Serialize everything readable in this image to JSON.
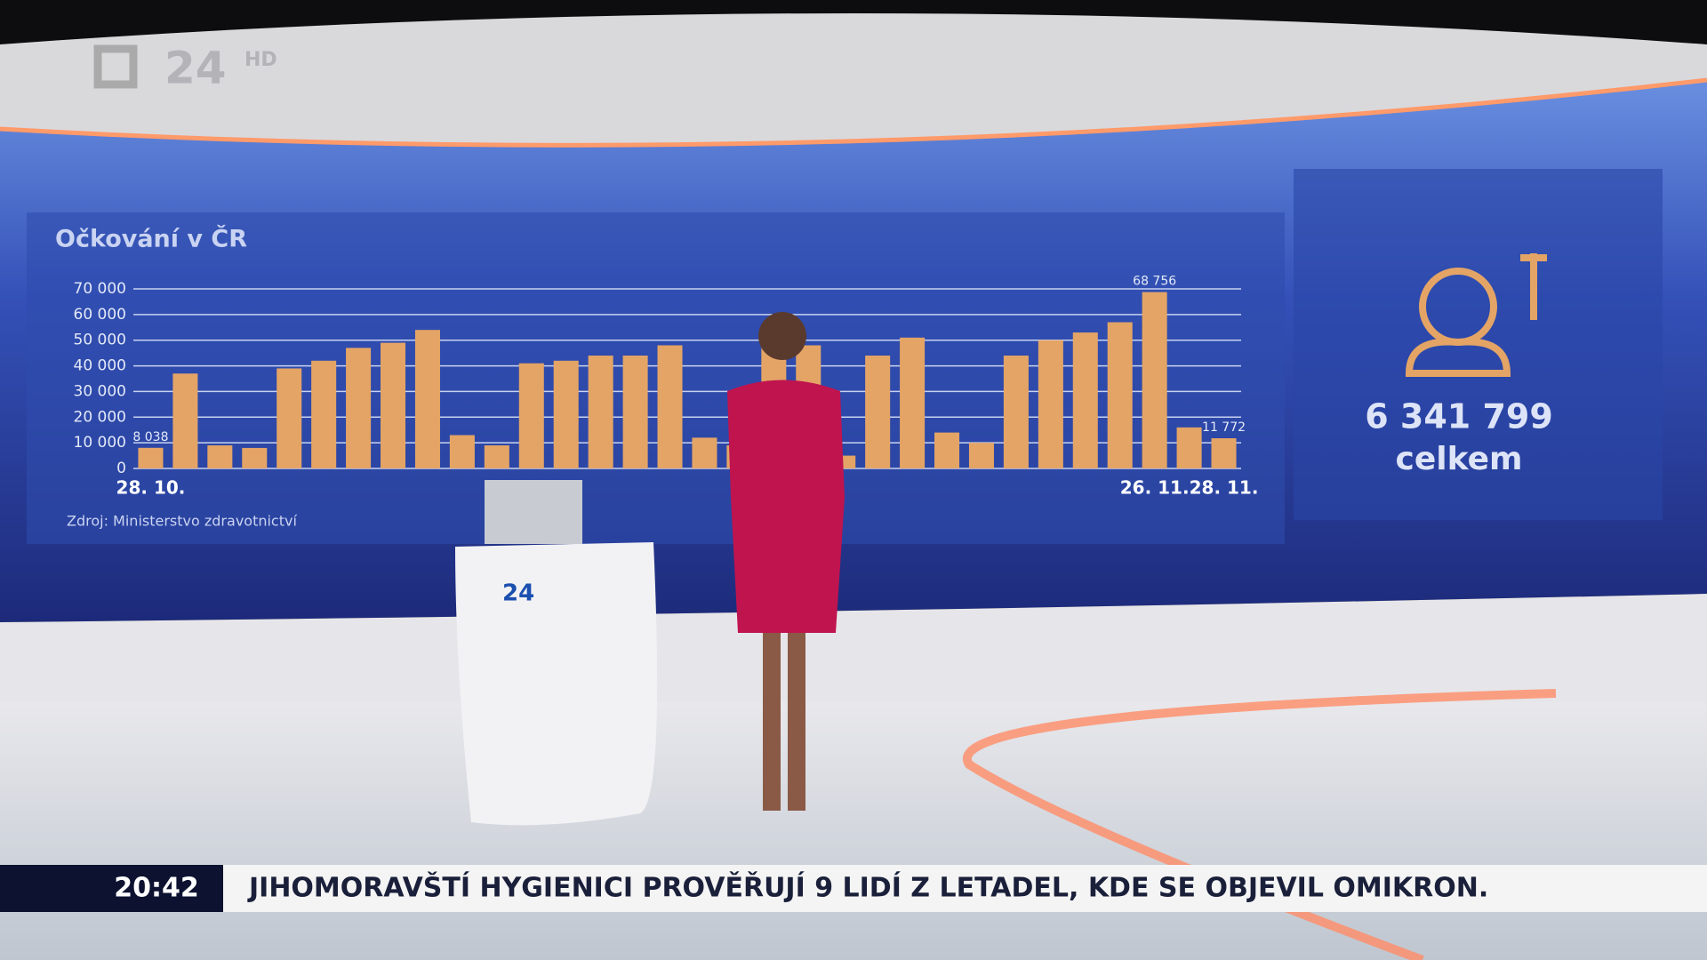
{
  "logo": {
    "channel": "24",
    "quality": "HD"
  },
  "chart_data": {
    "type": "bar",
    "title": "Očkování v ČR",
    "source": "Zdroj: Ministerstvo zdravotnictví",
    "categories": [
      "28. 10.",
      null,
      null,
      null,
      null,
      null,
      null,
      null,
      null,
      null,
      null,
      null,
      null,
      null,
      null,
      null,
      null,
      null,
      null,
      null,
      null,
      null,
      null,
      null,
      null,
      null,
      null,
      null,
      null,
      "26. 11.",
      null,
      "28. 11."
    ],
    "values": [
      8038,
      37000,
      9000,
      8000,
      39000,
      42000,
      47000,
      49000,
      54000,
      13000,
      9000,
      41000,
      42000,
      44000,
      44000,
      48000,
      12000,
      9000,
      48000,
      48000,
      5000,
      44000,
      51000,
      14000,
      10000,
      44000,
      50000,
      53000,
      57000,
      68756,
      16000,
      11772
    ],
    "value_labels": [
      "8 038",
      null,
      null,
      null,
      null,
      null,
      null,
      null,
      null,
      null,
      null,
      null,
      null,
      null,
      null,
      null,
      null,
      null,
      null,
      null,
      null,
      null,
      null,
      null,
      null,
      null,
      null,
      null,
      null,
      "68 756",
      null,
      "11 772"
    ],
    "color": "#e3a466",
    "ylim": [
      0,
      70000
    ],
    "yticks": [
      0,
      {
        "value": 10000,
        "label": "10 000"
      },
      {
        "value": 20000,
        "label": "20 000"
      },
      {
        "value": 30000,
        "label": "30 000"
      },
      {
        "value": 40000,
        "label": "40 000"
      },
      {
        "value": 50000,
        "label": "50 000"
      },
      {
        "value": 60000,
        "label": "60 000"
      },
      {
        "value": 70000,
        "label": "70 000"
      }
    ],
    "grid": true
  },
  "total": {
    "value": "6 341 799",
    "label": "celkem"
  },
  "podium": {
    "logo": "24"
  },
  "ticker": {
    "time": "20:42",
    "headline": "JIHOMORAVŠTÍ HYGIENICI PROVĚŘUJÍ 9 LIDÍ Z LETADEL, KDE SE OBJEVIL OMIKRON."
  }
}
